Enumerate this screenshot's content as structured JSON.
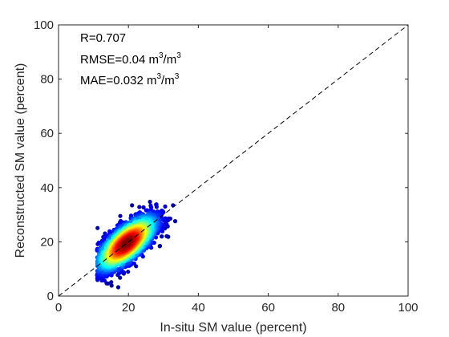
{
  "chart_data": {
    "type": "scatter",
    "title": "",
    "xlabel": "In-situ SM value (percent)",
    "ylabel": "Reconstructed SM value (percent)",
    "xlim": [
      0,
      100
    ],
    "ylim": [
      0,
      100
    ],
    "xticks": [
      "0",
      "20",
      "40",
      "60",
      "80",
      "100"
    ],
    "yticks": [
      "0",
      "20",
      "40",
      "60",
      "80",
      "100"
    ],
    "grid": false,
    "reference_line": {
      "style": "dashed",
      "from": [
        0,
        0
      ],
      "to": [
        100,
        100
      ]
    },
    "annotations": {
      "r": "R=0.707",
      "rmse_prefix": "RMSE=0.04 m",
      "mae_prefix": "MAE=0.032 m",
      "unit_exp": "3",
      "unit_sep": "/m"
    },
    "density_colormap": [
      "#00008f",
      "#0000ff",
      "#007fff",
      "#00ffff",
      "#7fff7f",
      "#ffff00",
      "#ff7f00",
      "#ff0000",
      "#7f0000"
    ],
    "points": {
      "center": [
        19.5,
        19.5
      ],
      "x_range": [
        11,
        36
      ],
      "y_range": [
        3,
        39
      ],
      "correlation": 0.707
    }
  }
}
